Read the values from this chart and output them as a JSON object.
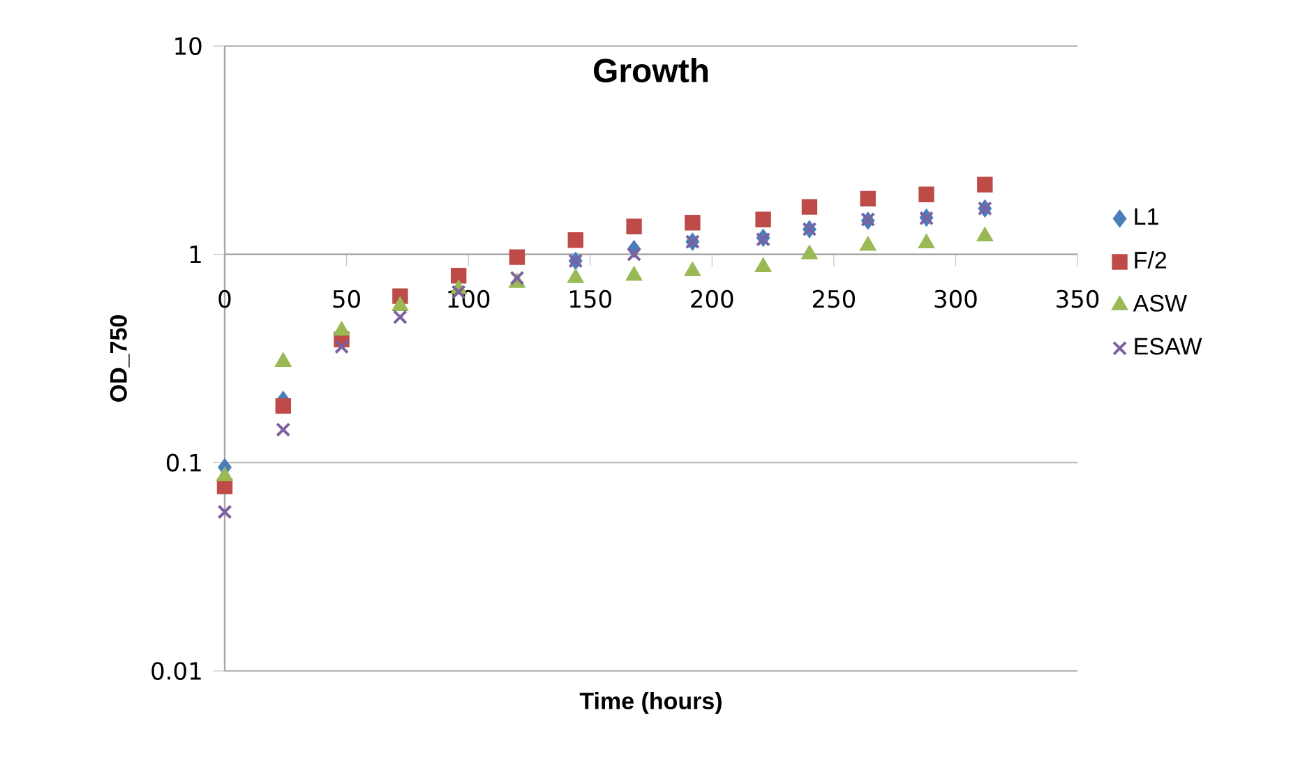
{
  "chart_data": {
    "type": "scatter",
    "title": "Growth",
    "xlabel": "Time (hours)",
    "ylabel": "OD_750",
    "x": [
      0,
      24,
      48,
      72,
      96,
      120,
      144,
      168,
      192,
      221,
      240,
      264,
      288,
      312
    ],
    "series": [
      {
        "name": "L1",
        "color": "#4a7ebb",
        "marker": "diamond",
        "values": [
          0.095,
          0.2,
          null,
          null,
          null,
          null,
          0.93,
          1.06,
          1.15,
          1.2,
          1.32,
          1.45,
          1.5,
          1.66
        ]
      },
      {
        "name": "F/2",
        "color": "#be4b48",
        "marker": "square",
        "values": [
          0.077,
          0.187,
          0.39,
          0.63,
          0.79,
          0.97,
          1.17,
          1.36,
          1.42,
          1.47,
          1.69,
          1.85,
          1.94,
          2.16
        ]
      },
      {
        "name": "ASW",
        "color": "#98b954",
        "marker": "triangle",
        "values": [
          0.086,
          0.305,
          0.43,
          0.565,
          0.68,
          0.73,
          0.77,
          0.79,
          0.83,
          0.87,
          1.0,
          1.1,
          1.13,
          1.22
        ]
      },
      {
        "name": "ESAW",
        "color": "#7d60a0",
        "marker": "cross",
        "values": [
          0.058,
          0.144,
          0.36,
          0.5,
          0.66,
          0.77,
          0.93,
          1.0,
          1.15,
          1.18,
          1.32,
          1.47,
          1.49,
          1.66
        ]
      }
    ],
    "xlim": [
      0,
      350
    ],
    "xticks": [
      0,
      50,
      100,
      150,
      200,
      250,
      300,
      350
    ],
    "ylim": [
      0.01,
      10
    ],
    "yticks": [
      0.01,
      0.1,
      1,
      10
    ],
    "log": "y",
    "grid": "y",
    "legend": "right"
  }
}
